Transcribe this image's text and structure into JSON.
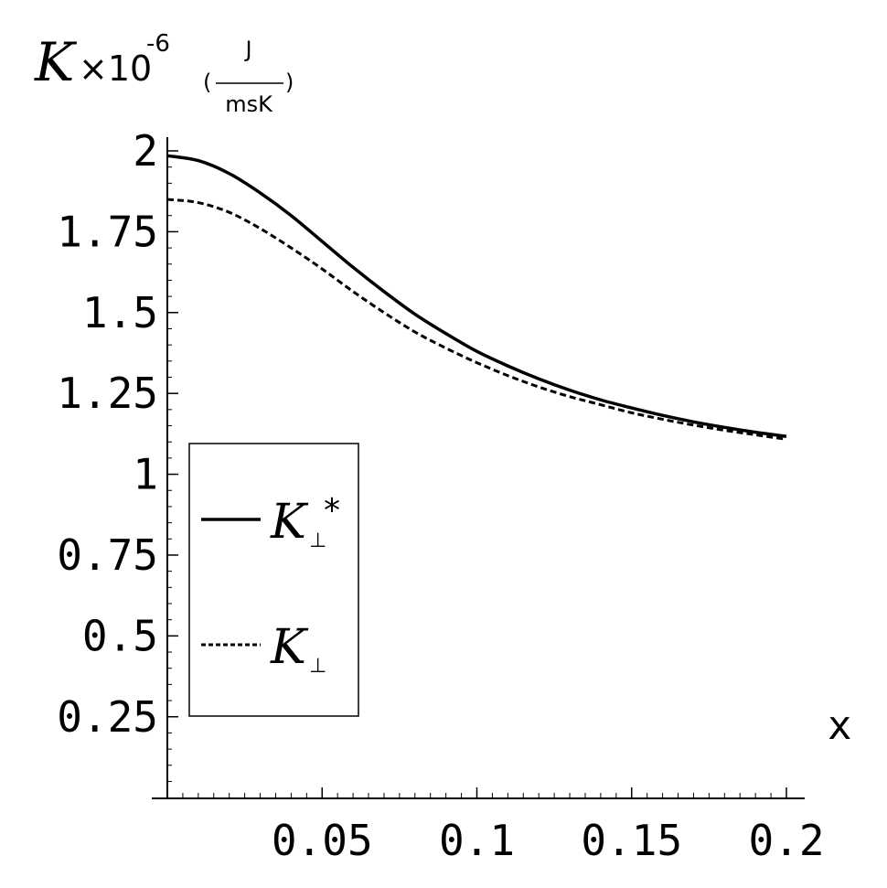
{
  "chart_data": {
    "type": "line",
    "xlabel": "x",
    "ylabel": {
      "symbol": "K",
      "multiplier": "×10",
      "exponent": "-6",
      "unit_open": "(",
      "unit_numerator": "J",
      "unit_denominator": "msK",
      "unit_close": ")"
    },
    "xlim": [
      0,
      0.2
    ],
    "ylim": [
      0,
      2
    ],
    "x_ticks": [
      {
        "value": 0.05,
        "label": "0.05"
      },
      {
        "value": 0.1,
        "label": "0.1"
      },
      {
        "value": 0.15,
        "label": "0.15"
      },
      {
        "value": 0.2,
        "label": "0.2"
      }
    ],
    "y_ticks": [
      {
        "value": 0.25,
        "label": "0.25"
      },
      {
        "value": 0.5,
        "label": "0.5"
      },
      {
        "value": 0.75,
        "label": "0.75"
      },
      {
        "value": 1,
        "label": "1"
      },
      {
        "value": 1.25,
        "label": "1.25"
      },
      {
        "value": 1.5,
        "label": "1.5"
      },
      {
        "value": 1.75,
        "label": "1.75"
      },
      {
        "value": 2,
        "label": "2"
      }
    ],
    "grid": false,
    "legend_position": "left-middle",
    "series": [
      {
        "name": "K⊥*",
        "legend_symbol": "K",
        "legend_sub": "⊥",
        "legend_sup": "*",
        "style": "solid",
        "color": "#000000",
        "x": [
          0,
          0.01,
          0.02,
          0.03,
          0.04,
          0.05,
          0.06,
          0.07,
          0.08,
          0.09,
          0.1,
          0.11,
          0.12,
          0.13,
          0.14,
          0.15,
          0.16,
          0.17,
          0.18,
          0.19,
          0.2
        ],
        "y": [
          1.985,
          1.97,
          1.93,
          1.87,
          1.8,
          1.72,
          1.64,
          1.565,
          1.495,
          1.435,
          1.38,
          1.335,
          1.295,
          1.26,
          1.23,
          1.205,
          1.182,
          1.162,
          1.145,
          1.13,
          1.117
        ]
      },
      {
        "name": "K⊥",
        "legend_symbol": "K",
        "legend_sub": "⊥",
        "legend_sup": "",
        "style": "dashed",
        "color": "#000000",
        "x": [
          0,
          0.01,
          0.02,
          0.03,
          0.04,
          0.05,
          0.06,
          0.07,
          0.08,
          0.09,
          0.1,
          0.11,
          0.12,
          0.13,
          0.14,
          0.15,
          0.16,
          0.17,
          0.18,
          0.19,
          0.2
        ],
        "y": [
          1.85,
          1.84,
          1.81,
          1.76,
          1.7,
          1.635,
          1.565,
          1.5,
          1.44,
          1.39,
          1.345,
          1.305,
          1.27,
          1.24,
          1.215,
          1.19,
          1.17,
          1.152,
          1.136,
          1.122,
          1.108
        ]
      }
    ]
  }
}
